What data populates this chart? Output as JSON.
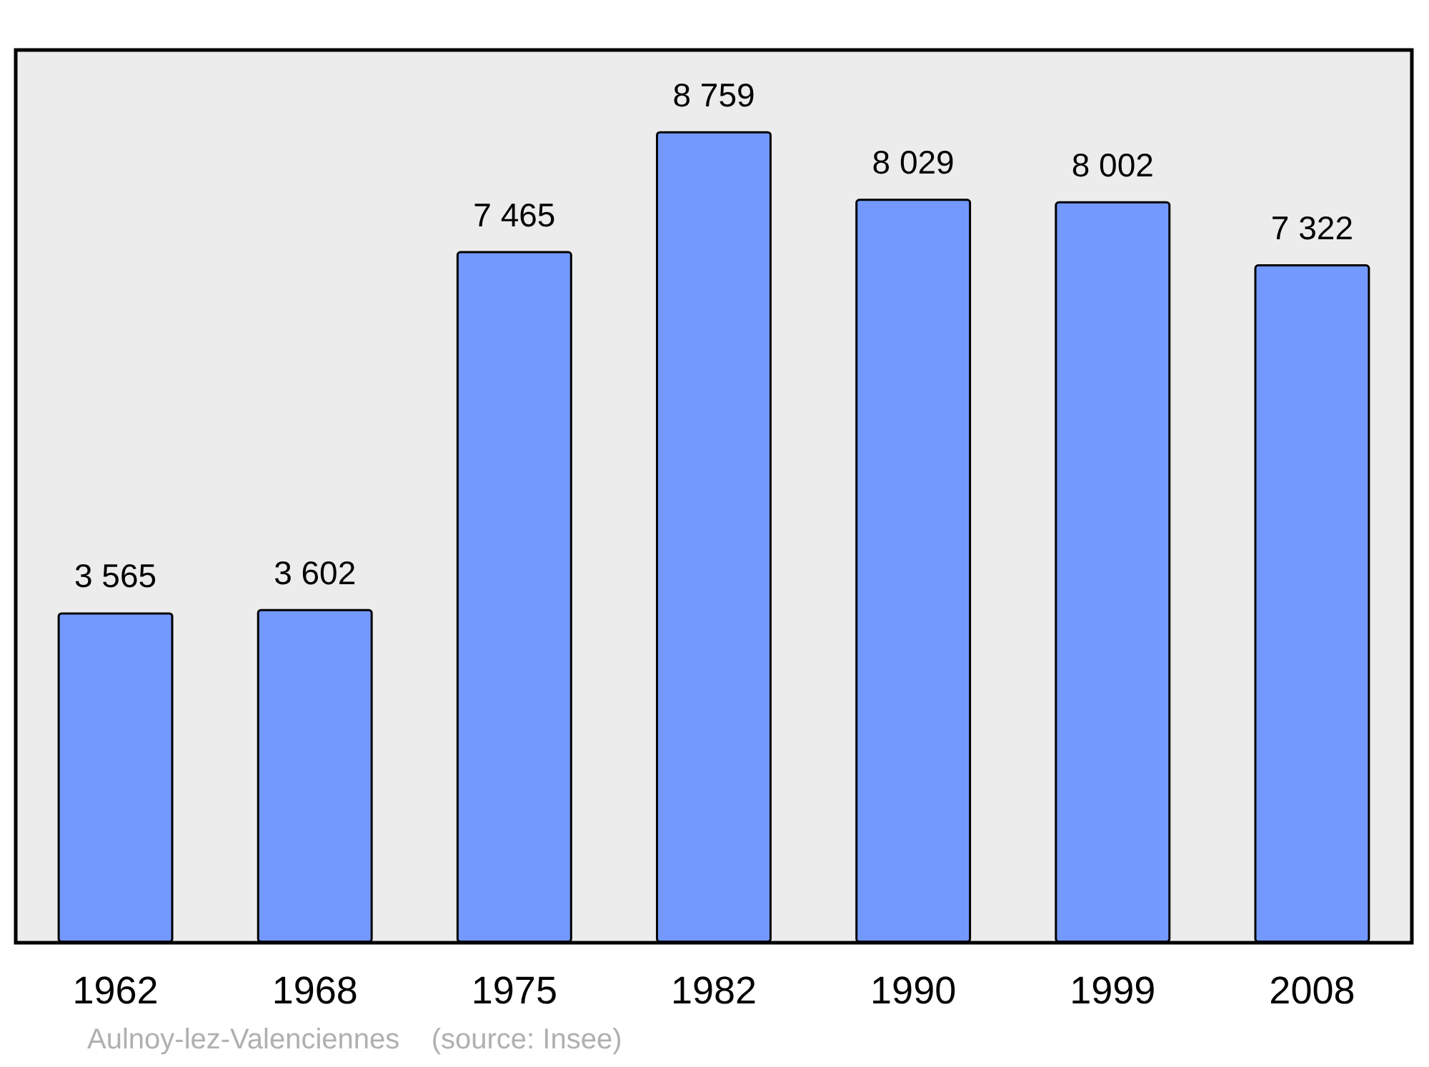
{
  "chart_data": {
    "type": "bar",
    "categories": [
      "1962",
      "1968",
      "1975",
      "1982",
      "1990",
      "1999",
      "2008"
    ],
    "values": [
      3565,
      3602,
      7465,
      8759,
      8029,
      8002,
      7322
    ],
    "value_labels": [
      "3 565",
      "3 602",
      "7 465",
      "8 759",
      "8 029",
      "8 002",
      "7 322"
    ],
    "color": "#7399ff",
    "annotations": [
      "Aulnoy-lez-Valenciennes    (source: Insee)"
    ]
  }
}
